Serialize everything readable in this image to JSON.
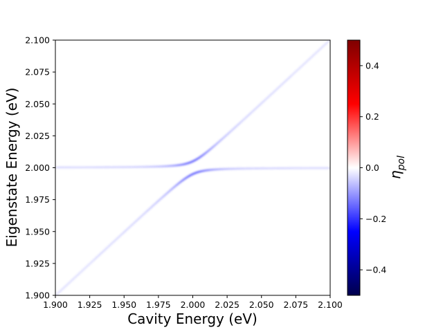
{
  "chart_data": {
    "type": "heatmap",
    "xlabel": "Cavity Energy (eV)",
    "ylabel": "Eigenstate Energy (eV)",
    "xlim": [
      1.9,
      2.1
    ],
    "ylim": [
      1.9,
      2.1
    ],
    "x_ticks": [
      "1.900",
      "1.925",
      "1.950",
      "1.975",
      "2.000",
      "2.025",
      "2.050",
      "2.075",
      "2.100"
    ],
    "y_ticks": [
      "1.900",
      "1.925",
      "1.950",
      "1.975",
      "2.000",
      "2.025",
      "2.050",
      "2.075",
      "2.100"
    ],
    "colorbar": {
      "label": "η_pol",
      "label_main": "η",
      "label_sub": "pol",
      "range": [
        -0.5,
        0.5
      ],
      "colormap": "seismic",
      "ticks": [
        "−0.4",
        "−0.2",
        "0.0",
        "0.2",
        "0.4"
      ],
      "tick_values": [
        -0.4,
        -0.2,
        0.0,
        0.2,
        0.4
      ]
    },
    "features": {
      "cavity_line": "diagonal, eigenstate energy = cavity energy, faint blue",
      "exciton_line_energy": 2.0,
      "anticrossing_center": [
        2.0,
        2.0
      ],
      "rabi_splitting_ev": 0.01,
      "peak_eta": -0.04
    },
    "colors": {
      "feature": "#6a6aff",
      "axis": "#000000"
    }
  }
}
